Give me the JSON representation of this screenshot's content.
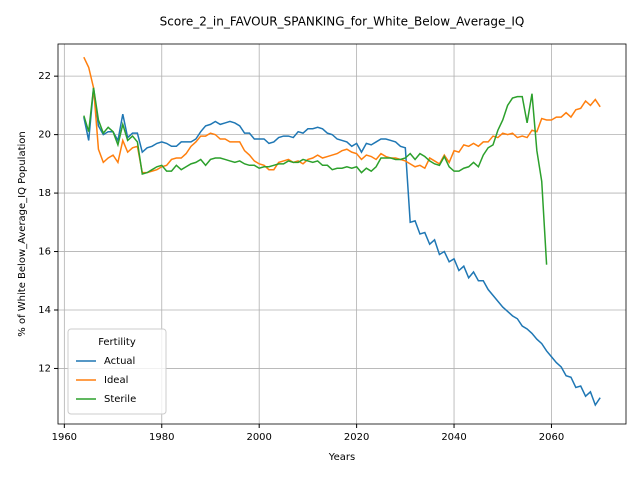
{
  "chart_data": {
    "type": "line",
    "title": "Score_2_in_FAVOUR_SPANKING_for_White_Below_Average_IQ",
    "xlabel": "Years",
    "ylabel": "% of White Below_Average_IQ Population",
    "legend_title": "Fertility",
    "legend": "lower left",
    "grid": true,
    "xlim": [
      1958.7,
      2075.3
    ],
    "ylim": [
      10.1,
      23.1
    ],
    "xticks": [
      1960,
      1980,
      2000,
      2020,
      2040,
      2060
    ],
    "yticks": [
      12,
      14,
      16,
      18,
      20,
      22
    ],
    "x": [
      1964,
      1965,
      1966,
      1967,
      1968,
      1969,
      1970,
      1971,
      1972,
      1973,
      1974,
      1975,
      1976,
      1977,
      1978,
      1979,
      1980,
      1981,
      1982,
      1983,
      1984,
      1985,
      1986,
      1987,
      1988,
      1989,
      1990,
      1991,
      1992,
      1993,
      1994,
      1995,
      1996,
      1997,
      1998,
      1999,
      2000,
      2001,
      2002,
      2003,
      2004,
      2005,
      2006,
      2007,
      2008,
      2009,
      2010,
      2011,
      2012,
      2013,
      2014,
      2015,
      2016,
      2017,
      2018,
      2019,
      2020,
      2021,
      2022,
      2023,
      2024,
      2025,
      2026,
      2027,
      2028,
      2029,
      2030,
      2031,
      2032,
      2033,
      2034,
      2035,
      2036,
      2037,
      2038,
      2039,
      2040,
      2041,
      2042,
      2043,
      2044,
      2045,
      2046,
      2047,
      2048,
      2049,
      2050,
      2051,
      2052,
      2053,
      2054,
      2055,
      2056,
      2057,
      2058,
      2059,
      2060,
      2061,
      2062,
      2063,
      2064,
      2065,
      2066,
      2067,
      2068,
      2069,
      2070
    ],
    "series": [
      {
        "name": "Actual",
        "color": "#1f77b4",
        "values": [
          20.6,
          19.8,
          21.6,
          20.3,
          20.0,
          20.1,
          20.1,
          19.8,
          20.7,
          19.9,
          20.05,
          20.05,
          19.4,
          19.55,
          19.6,
          19.7,
          19.75,
          19.7,
          19.6,
          19.6,
          19.75,
          19.75,
          19.75,
          19.85,
          20.1,
          20.3,
          20.35,
          20.45,
          20.35,
          20.4,
          20.45,
          20.4,
          20.3,
          20.05,
          20.05,
          19.85,
          19.85,
          19.85,
          19.7,
          19.75,
          19.9,
          19.95,
          19.95,
          19.9,
          20.1,
          20.05,
          20.2,
          20.2,
          20.25,
          20.2,
          20.05,
          20.0,
          19.85,
          19.8,
          19.75,
          19.6,
          19.7,
          19.4,
          19.7,
          19.65,
          19.75,
          19.85,
          19.85,
          19.8,
          19.75,
          19.6,
          19.55,
          17.0,
          17.05,
          16.6,
          16.65,
          16.25,
          16.4,
          15.9,
          16.0,
          15.65,
          15.75,
          15.35,
          15.5,
          15.1,
          15.3,
          15.0,
          15.0,
          14.7,
          14.5,
          14.3,
          14.1,
          13.95,
          13.8,
          13.7,
          13.45,
          13.35,
          13.2,
          13.0,
          12.85,
          12.6,
          12.4,
          12.2,
          12.05,
          11.75,
          11.7,
          11.35,
          11.4,
          11.05,
          11.2,
          10.75,
          11.0
        ]
      },
      {
        "name": "Ideal",
        "color": "#ff7f0e",
        "values": [
          22.65,
          22.3,
          21.6,
          19.5,
          19.05,
          19.2,
          19.3,
          19.05,
          19.8,
          19.4,
          19.55,
          19.6,
          18.7,
          18.7,
          18.75,
          18.8,
          18.9,
          18.95,
          19.15,
          19.2,
          19.2,
          19.35,
          19.6,
          19.75,
          19.95,
          19.95,
          20.05,
          20.0,
          19.85,
          19.85,
          19.75,
          19.75,
          19.75,
          19.45,
          19.3,
          19.1,
          19.0,
          18.95,
          18.8,
          18.8,
          19.05,
          19.1,
          19.15,
          19.05,
          19.1,
          19.0,
          19.15,
          19.2,
          19.3,
          19.2,
          19.25,
          19.3,
          19.35,
          19.45,
          19.5,
          19.4,
          19.35,
          19.15,
          19.3,
          19.25,
          19.15,
          19.35,
          19.25,
          19.2,
          19.2,
          19.15,
          19.1,
          19.0,
          18.9,
          18.95,
          18.85,
          19.2,
          19.1,
          19.0,
          19.3,
          19.05,
          19.45,
          19.4,
          19.65,
          19.6,
          19.7,
          19.6,
          19.75,
          19.75,
          19.95,
          19.9,
          20.05,
          20.0,
          20.05,
          19.9,
          19.95,
          19.9,
          20.15,
          20.1,
          20.55,
          20.5,
          20.5,
          20.6,
          20.6,
          20.75,
          20.6,
          20.85,
          20.9,
          21.15,
          21.0,
          21.2,
          20.95
        ]
      },
      {
        "name": "Sterile",
        "color": "#2ca02c",
        "values": [
          20.65,
          20.1,
          21.6,
          20.5,
          20.05,
          20.25,
          20.1,
          19.65,
          20.35,
          19.8,
          19.95,
          19.75,
          18.65,
          18.7,
          18.8,
          18.9,
          18.95,
          18.75,
          18.75,
          18.95,
          18.8,
          18.9,
          19.0,
          19.05,
          19.15,
          18.95,
          19.15,
          19.2,
          19.2,
          19.15,
          19.1,
          19.05,
          19.1,
          19.0,
          18.95,
          18.95,
          18.85,
          18.9,
          18.9,
          18.95,
          19.0,
          19.0,
          19.1,
          19.05,
          19.05,
          19.15,
          19.1,
          19.05,
          19.1,
          18.95,
          18.95,
          18.8,
          18.85,
          18.85,
          18.9,
          18.85,
          18.9,
          18.7,
          18.85,
          18.75,
          18.9,
          19.2,
          19.2,
          19.2,
          19.15,
          19.15,
          19.2,
          19.35,
          19.15,
          19.35,
          19.25,
          19.1,
          19.0,
          18.95,
          19.25,
          18.9,
          18.75,
          18.75,
          18.85,
          18.9,
          19.05,
          18.9,
          19.3,
          19.55,
          19.65,
          20.15,
          20.5,
          21.0,
          21.25,
          21.3,
          21.3,
          20.4,
          21.4,
          19.45,
          18.4,
          15.55,
          null,
          null,
          null,
          null,
          null,
          null,
          null,
          null,
          null,
          null,
          null
        ]
      }
    ]
  }
}
